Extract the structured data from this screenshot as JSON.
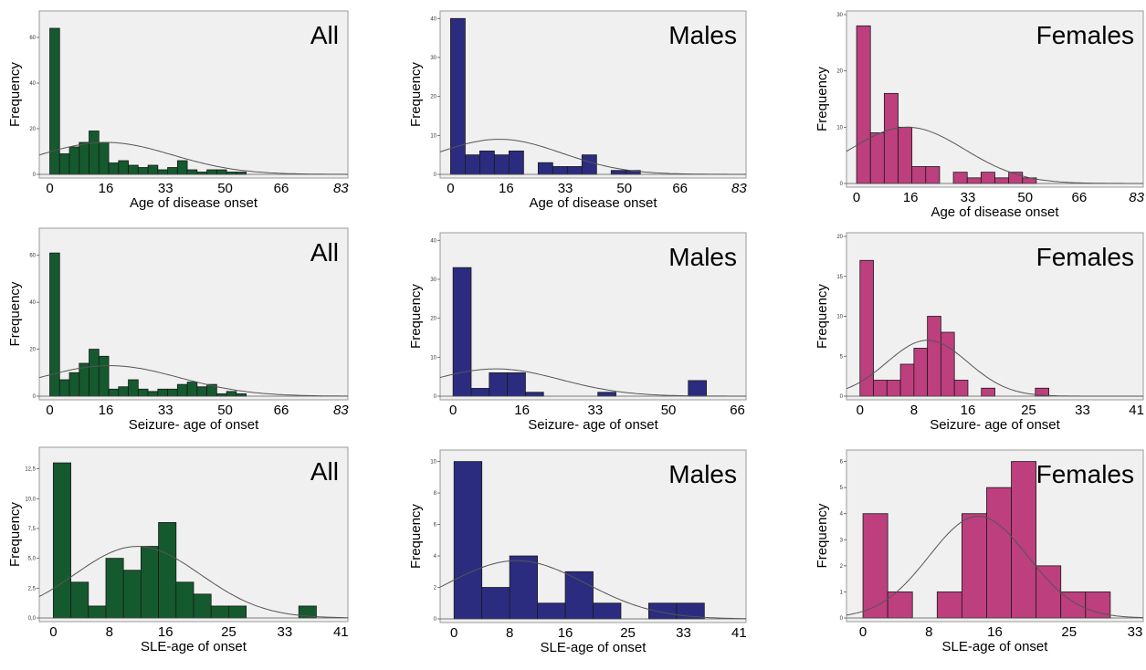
{
  "colors": {
    "All": "#145a2e",
    "Males": "#2b2c80",
    "Females": "#bd3f7e"
  },
  "chart_data": [
    {
      "type": "bar",
      "panel": "All",
      "title": "All",
      "ylabel": "Frequency",
      "xlabel": "Age of disease onset",
      "xlim": [
        -3,
        85
      ],
      "ylim": [
        0,
        70
      ],
      "bin_width": 2.8,
      "xticks": [
        {
          "v": 0,
          "t": "0"
        },
        {
          "v": 16,
          "t": "16"
        },
        {
          "v": 33,
          "t": "33"
        },
        {
          "v": 50,
          "t": "50"
        },
        {
          "v": 66,
          "t": "66"
        },
        {
          "v": 83,
          "t": "83",
          "i": true
        }
      ],
      "yticks": [
        {
          "v": 0,
          "t": "0"
        },
        {
          "v": 20,
          "t": "20"
        },
        {
          "v": 40,
          "t": "40"
        },
        {
          "v": 60,
          "t": "60"
        }
      ],
      "values": [
        64,
        9,
        12,
        14,
        19,
        14,
        5,
        6,
        4,
        3,
        4,
        2,
        3,
        6,
        2,
        1,
        2,
        2,
        1,
        1
      ],
      "curve": {
        "mean": 16,
        "sd": 19,
        "peak": 14
      }
    },
    {
      "type": "bar",
      "panel": "Males",
      "title": "Males",
      "ylabel": "Frequency",
      "xlabel": "Age of disease onset",
      "xlim": [
        -3,
        85
      ],
      "ylim": [
        0,
        41
      ],
      "bin_width": 4.2,
      "xticks": [
        {
          "v": 0,
          "t": "0"
        },
        {
          "v": 16,
          "t": "16"
        },
        {
          "v": 33,
          "t": "33"
        },
        {
          "v": 50,
          "t": "50"
        },
        {
          "v": 66,
          "t": "66"
        },
        {
          "v": 83,
          "t": "83",
          "i": true
        }
      ],
      "yticks": [
        {
          "v": 0,
          "t": "0"
        },
        {
          "v": 10,
          "t": "10"
        },
        {
          "v": 20,
          "t": "20"
        },
        {
          "v": 30,
          "t": "30"
        },
        {
          "v": 40,
          "t": "40"
        }
      ],
      "values": [
        40,
        5,
        6,
        5,
        6,
        0,
        3,
        2,
        2,
        5,
        0,
        1,
        1
      ],
      "curve": {
        "mean": 14,
        "sd": 18,
        "peak": 9
      }
    },
    {
      "type": "bar",
      "panel": "Females",
      "title": "Females",
      "ylabel": "Frequency",
      "xlabel": "Age of disease onset",
      "xlim": [
        -3,
        85
      ],
      "ylim": [
        0,
        30
      ],
      "bin_width": 4.1,
      "xticks": [
        {
          "v": 0,
          "t": "0"
        },
        {
          "v": 16,
          "t": "16"
        },
        {
          "v": 33,
          "t": "33"
        },
        {
          "v": 50,
          "t": "50"
        },
        {
          "v": 66,
          "t": "66"
        },
        {
          "v": 83,
          "t": "83",
          "i": true
        }
      ],
      "yticks": [
        {
          "v": 0,
          "t": "0"
        },
        {
          "v": 10,
          "t": "10"
        },
        {
          "v": 20,
          "t": "20"
        },
        {
          "v": 30,
          "t": "30"
        }
      ],
      "values": [
        28,
        9,
        16,
        10,
        3,
        3,
        0,
        2,
        1,
        2,
        1,
        2,
        1
      ],
      "curve": {
        "mean": 15,
        "sd": 17,
        "peak": 10
      }
    },
    {
      "type": "bar",
      "panel": "All",
      "title": "All",
      "ylabel": "Frequency",
      "xlabel": "Seizure- age of onset",
      "xlim": [
        -3,
        85
      ],
      "ylim": [
        0,
        70
      ],
      "bin_width": 2.8,
      "xticks": [
        {
          "v": 0,
          "t": "0"
        },
        {
          "v": 16,
          "t": "16"
        },
        {
          "v": 33,
          "t": "33"
        },
        {
          "v": 50,
          "t": "50"
        },
        {
          "v": 66,
          "t": "66"
        },
        {
          "v": 83,
          "t": "83",
          "i": true
        }
      ],
      "yticks": [
        {
          "v": 0,
          "t": "0"
        },
        {
          "v": 20,
          "t": "20"
        },
        {
          "v": 40,
          "t": "40"
        },
        {
          "v": 60,
          "t": "60"
        }
      ],
      "values": [
        61,
        7,
        10,
        14,
        20,
        17,
        3,
        4,
        7,
        3,
        2,
        3,
        3,
        5,
        6,
        4,
        5,
        1,
        2,
        1
      ],
      "curve": {
        "mean": 17,
        "sd": 20,
        "peak": 13
      }
    },
    {
      "type": "bar",
      "panel": "Males",
      "title": "Males",
      "ylabel": "Frequency",
      "xlabel": "Seizure- age of onset",
      "xlim": [
        -3,
        68
      ],
      "ylim": [
        0,
        41
      ],
      "bin_width": 4.2,
      "xticks": [
        {
          "v": 0,
          "t": "0"
        },
        {
          "v": 16,
          "t": "16"
        },
        {
          "v": 33,
          "t": "33"
        },
        {
          "v": 50,
          "t": "50"
        },
        {
          "v": 66,
          "t": "66"
        }
      ],
      "yticks": [
        {
          "v": 0,
          "t": "0"
        },
        {
          "v": 10,
          "t": "10"
        },
        {
          "v": 20,
          "t": "20"
        },
        {
          "v": 30,
          "t": "30"
        },
        {
          "v": 40,
          "t": "40"
        }
      ],
      "values": [
        33,
        2,
        6,
        6,
        1,
        0,
        0,
        0,
        1,
        0,
        0,
        0,
        0,
        4
      ],
      "curve": {
        "mean": 10,
        "sd": 15,
        "peak": 7
      }
    },
    {
      "type": "bar",
      "panel": "Females",
      "title": "Females",
      "ylabel": "Frequency",
      "xlabel": "Seizure- age of onset",
      "xlim": [
        -2,
        42
      ],
      "ylim": [
        0,
        20
      ],
      "bin_width": 2,
      "xticks": [
        {
          "v": 0,
          "t": "0"
        },
        {
          "v": 8,
          "t": "8"
        },
        {
          "v": 16,
          "t": "16"
        },
        {
          "v": 25,
          "t": "25"
        },
        {
          "v": 33,
          "t": "33"
        },
        {
          "v": 41,
          "t": "41"
        }
      ],
      "yticks": [
        {
          "v": 0,
          "t": "0"
        },
        {
          "v": 5,
          "t": "5"
        },
        {
          "v": 10,
          "t": "10"
        },
        {
          "v": 15,
          "t": "15"
        },
        {
          "v": 20,
          "t": "20"
        }
      ],
      "values": [
        17,
        2,
        2,
        4,
        6,
        10,
        8,
        2,
        0,
        1,
        0,
        0,
        0,
        1
      ],
      "curve": {
        "mean": 10,
        "sd": 6,
        "peak": 7
      }
    },
    {
      "type": "bar",
      "panel": "All",
      "title": "All",
      "ylabel": "Frequency",
      "xlabel": "SLE-age of onset",
      "xlim": [
        -2,
        42
      ],
      "ylim": [
        0,
        14
      ],
      "bin_width": 2.5,
      "xticks": [
        {
          "v": 0,
          "t": "0"
        },
        {
          "v": 8,
          "t": "8"
        },
        {
          "v": 16,
          "t": "16"
        },
        {
          "v": 25,
          "t": "25"
        },
        {
          "v": 33,
          "t": "33"
        },
        {
          "v": 41,
          "t": "41"
        }
      ],
      "yticks": [
        {
          "v": 0,
          "t": "0,0"
        },
        {
          "v": 2.5,
          "t": "2,5"
        },
        {
          "v": 5,
          "t": "5,0"
        },
        {
          "v": 7.5,
          "t": "7,5"
        },
        {
          "v": 10,
          "t": "10,0"
        },
        {
          "v": 12.5,
          "t": "12,5"
        }
      ],
      "values": [
        13,
        3,
        1,
        5,
        4,
        6,
        8,
        3,
        2,
        1,
        1,
        0,
        0,
        0,
        1
      ],
      "curve": {
        "mean": 12,
        "sd": 9,
        "peak": 6,
        "color": "#4a8a6e"
      }
    },
    {
      "type": "bar",
      "panel": "Males",
      "title": "Males",
      "ylabel": "Frequency",
      "xlabel": "SLE-age of onset",
      "xlim": [
        -2,
        42
      ],
      "ylim": [
        0,
        10.5
      ],
      "bin_width": 4,
      "xticks": [
        {
          "v": 0,
          "t": "0"
        },
        {
          "v": 8,
          "t": "8"
        },
        {
          "v": 16,
          "t": "16"
        },
        {
          "v": 25,
          "t": "25"
        },
        {
          "v": 33,
          "t": "33"
        },
        {
          "v": 41,
          "t": "41"
        }
      ],
      "yticks": [
        {
          "v": 0,
          "t": "0"
        },
        {
          "v": 2,
          "t": "2"
        },
        {
          "v": 4,
          "t": "4"
        },
        {
          "v": 6,
          "t": "6"
        },
        {
          "v": 8,
          "t": "8"
        },
        {
          "v": 10,
          "t": "10"
        }
      ],
      "values": [
        10,
        2,
        4,
        1,
        3,
        1,
        0,
        1,
        1
      ],
      "curve": {
        "mean": 9,
        "sd": 10,
        "peak": 3.7
      }
    },
    {
      "type": "bar",
      "panel": "Females",
      "title": "Females",
      "ylabel": "Frequency",
      "xlabel": "SLE-age of onset",
      "xlim": [
        -2,
        34
      ],
      "ylim": [
        0,
        6.3
      ],
      "bin_width": 3,
      "xticks": [
        {
          "v": 0,
          "t": "0"
        },
        {
          "v": 8,
          "t": "8"
        },
        {
          "v": 16,
          "t": "16"
        },
        {
          "v": 25,
          "t": "25"
        },
        {
          "v": 33,
          "t": "33"
        }
      ],
      "yticks": [
        {
          "v": 0,
          "t": "0"
        },
        {
          "v": 1,
          "t": "1"
        },
        {
          "v": 2,
          "t": "2"
        },
        {
          "v": 3,
          "t": "3"
        },
        {
          "v": 4,
          "t": "4"
        },
        {
          "v": 5,
          "t": "5"
        },
        {
          "v": 6,
          "t": "6"
        }
      ],
      "values": [
        4,
        1,
        0,
        1,
        4,
        5,
        6,
        2,
        1,
        1
      ],
      "curve": {
        "mean": 14,
        "sd": 6,
        "peak": 3.9
      }
    }
  ]
}
